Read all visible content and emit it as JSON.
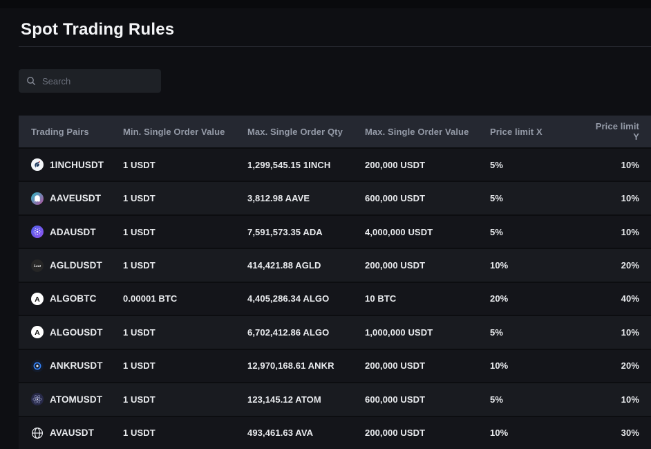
{
  "page": {
    "title": "Spot Trading Rules"
  },
  "search": {
    "placeholder": "Search",
    "icon": "search-icon"
  },
  "colors": {
    "background": "#0e0f13",
    "header_bg": "#252831",
    "row_dark": "#14151a",
    "row_light": "#191b20",
    "text_primary": "#e9ebee",
    "text_header": "#959ba8",
    "ankr_blue": "#3381f6",
    "aave_gradient": [
      "#2ebac6",
      "#b6509e"
    ],
    "ada_gradient": [
      "#5161e8",
      "#8f53f0"
    ]
  },
  "table": {
    "columns": [
      {
        "key": "pair",
        "label": "Trading Pairs"
      },
      {
        "key": "min",
        "label": "Min. Single Order Value"
      },
      {
        "key": "maxQty",
        "label": "Max. Single Order Qty"
      },
      {
        "key": "maxVal",
        "label": "Max. Single Order Value"
      },
      {
        "key": "limitX",
        "label": "Price limit X"
      },
      {
        "key": "limitY",
        "label": "Price limit Y"
      }
    ],
    "rows": [
      {
        "pair": "1INCHUSDT",
        "icon": "1inch",
        "min": "1 USDT",
        "maxQty": "1,299,545.15 1INCH",
        "maxVal": "200,000 USDT",
        "limitX": "5%",
        "limitY": "10%"
      },
      {
        "pair": "AAVEUSDT",
        "icon": "aave",
        "min": "1 USDT",
        "maxQty": "3,812.98 AAVE",
        "maxVal": "600,000 USDT",
        "limitX": "5%",
        "limitY": "10%"
      },
      {
        "pair": "ADAUSDT",
        "icon": "ada",
        "min": "1 USDT",
        "maxQty": "7,591,573.35 ADA",
        "maxVal": "4,000,000 USDT",
        "limitX": "5%",
        "limitY": "10%"
      },
      {
        "pair": "AGLDUSDT",
        "icon": "agld",
        "min": "1 USDT",
        "maxQty": "414,421.88 AGLD",
        "maxVal": "200,000 USDT",
        "limitX": "10%",
        "limitY": "20%"
      },
      {
        "pair": "ALGOBTC",
        "icon": "algo",
        "min": "0.00001 BTC",
        "maxQty": "4,405,286.34 ALGO",
        "maxVal": "10 BTC",
        "limitX": "20%",
        "limitY": "40%"
      },
      {
        "pair": "ALGOUSDT",
        "icon": "algo",
        "min": "1 USDT",
        "maxQty": "6,702,412.86 ALGO",
        "maxVal": "1,000,000 USDT",
        "limitX": "5%",
        "limitY": "10%"
      },
      {
        "pair": "ANKRUSDT",
        "icon": "ankr",
        "min": "1 USDT",
        "maxQty": "12,970,168.61 ANKR",
        "maxVal": "200,000 USDT",
        "limitX": "10%",
        "limitY": "20%"
      },
      {
        "pair": "ATOMUSDT",
        "icon": "atom",
        "min": "1 USDT",
        "maxQty": "123,145.12 ATOM",
        "maxVal": "600,000 USDT",
        "limitX": "5%",
        "limitY": "10%"
      },
      {
        "pair": "AVAUSDT",
        "icon": "ava",
        "min": "1 USDT",
        "maxQty": "493,461.63 AVA",
        "maxVal": "200,000 USDT",
        "limitX": "10%",
        "limitY": "30%"
      }
    ]
  }
}
